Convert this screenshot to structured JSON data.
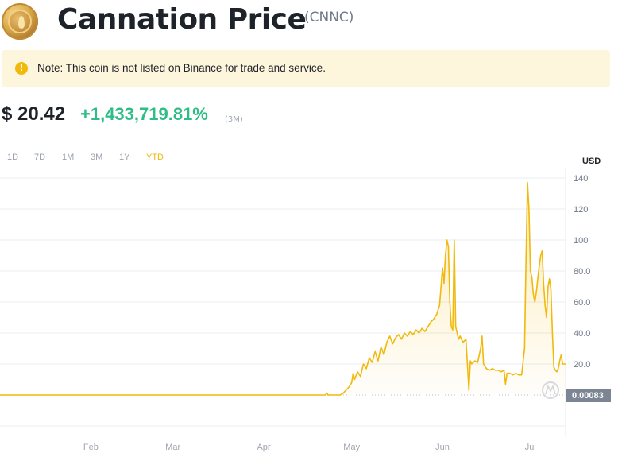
{
  "header": {
    "title": "Cannation Price",
    "symbol": "(CNNC)",
    "logo_icon": "cannation-coin-icon"
  },
  "note": {
    "icon": "exclamation-icon",
    "text": "Note: This coin is not listed on Binance for trade and service."
  },
  "price": {
    "value": "$ 20.42",
    "change": "+1,433,719.81%",
    "period": "(3M)"
  },
  "ranges": [
    {
      "label": "1D",
      "active": false
    },
    {
      "label": "7D",
      "active": false
    },
    {
      "label": "1M",
      "active": false
    },
    {
      "label": "3M",
      "active": false
    },
    {
      "label": "1Y",
      "active": false
    },
    {
      "label": "YTD",
      "active": true
    }
  ],
  "colors": {
    "line": "#f0b90b",
    "up": "#2ebd85",
    "accent": "#f0b90b"
  },
  "chart_data": {
    "type": "area",
    "unit": "USD",
    "ylim": [
      -20,
      145
    ],
    "yticks": [
      "140",
      "120",
      "100",
      "80.0",
      "60.0",
      "40.0",
      "20.0"
    ],
    "ytick_values": [
      140,
      120,
      100,
      80,
      60,
      40,
      20
    ],
    "xlim": [
      0,
      193
    ],
    "xticks": [
      "Feb",
      "Mar",
      "Apr",
      "May",
      "Jun",
      "Jul"
    ],
    "xtick_values": [
      31,
      59,
      90,
      120,
      151,
      181
    ],
    "current_value_label": "0.00083",
    "current_value": 0.00083,
    "grid": true,
    "series": [
      {
        "points": [
          [
            0,
            0.0008
          ],
          [
            111,
            0.0008
          ],
          [
            111.5,
            1.2
          ],
          [
            112,
            0.0008
          ],
          [
            116,
            0.0008
          ],
          [
            117,
            1
          ],
          [
            118,
            3
          ],
          [
            119,
            5
          ],
          [
            120,
            8
          ],
          [
            120.5,
            14
          ],
          [
            121,
            10
          ],
          [
            122,
            15
          ],
          [
            123,
            12
          ],
          [
            124,
            20
          ],
          [
            125,
            17
          ],
          [
            126,
            24
          ],
          [
            127,
            21
          ],
          [
            128,
            28
          ],
          [
            129,
            22
          ],
          [
            130,
            31
          ],
          [
            131,
            26
          ],
          [
            132,
            34
          ],
          [
            133,
            38
          ],
          [
            134,
            33
          ],
          [
            135,
            37
          ],
          [
            136,
            39
          ],
          [
            137,
            36
          ],
          [
            138,
            40
          ],
          [
            139,
            38
          ],
          [
            140,
            41
          ],
          [
            141,
            39
          ],
          [
            142,
            42
          ],
          [
            143,
            40
          ],
          [
            144,
            43
          ],
          [
            145,
            41
          ],
          [
            146,
            44
          ],
          [
            147,
            47
          ],
          [
            148,
            49
          ],
          [
            149,
            52
          ],
          [
            150,
            58
          ],
          [
            150.5,
            70
          ],
          [
            151,
            82
          ],
          [
            151.5,
            72
          ],
          [
            152,
            90
          ],
          [
            152.5,
            100
          ],
          [
            153,
            96
          ],
          [
            153.5,
            60
          ],
          [
            154,
            44
          ],
          [
            154.5,
            42
          ],
          [
            155,
            100
          ],
          [
            155.5,
            44
          ],
          [
            156,
            40
          ],
          [
            156.5,
            36
          ],
          [
            157,
            38
          ],
          [
            158,
            34
          ],
          [
            159,
            36
          ],
          [
            159.5,
            20
          ],
          [
            160,
            3
          ],
          [
            160.5,
            22
          ],
          [
            161,
            20
          ],
          [
            162,
            22
          ],
          [
            163,
            21
          ],
          [
            164,
            30
          ],
          [
            164.5,
            38
          ],
          [
            165,
            20
          ],
          [
            166,
            17
          ],
          [
            167,
            16
          ],
          [
            168,
            17
          ],
          [
            169,
            16
          ],
          [
            170,
            16
          ],
          [
            171,
            15
          ],
          [
            172,
            16
          ],
          [
            172.5,
            7
          ],
          [
            173,
            14
          ],
          [
            174,
            14
          ],
          [
            175,
            13
          ],
          [
            176,
            14
          ],
          [
            177,
            13
          ],
          [
            178,
            13
          ],
          [
            179,
            30
          ],
          [
            179.5,
            88
          ],
          [
            180,
            137
          ],
          [
            180.5,
            120
          ],
          [
            181,
            80
          ],
          [
            181.5,
            76
          ],
          [
            182,
            65
          ],
          [
            182.5,
            60
          ],
          [
            183,
            66
          ],
          [
            183.5,
            75
          ],
          [
            184,
            83
          ],
          [
            184.5,
            90
          ],
          [
            185,
            93
          ],
          [
            185.5,
            72
          ],
          [
            186,
            58
          ],
          [
            186.5,
            50
          ],
          [
            187,
            70
          ],
          [
            187.5,
            75
          ],
          [
            188,
            68
          ],
          [
            188.5,
            40
          ],
          [
            189,
            18
          ],
          [
            189.5,
            16
          ],
          [
            190,
            15
          ],
          [
            190.5,
            17
          ],
          [
            191,
            22
          ],
          [
            191.5,
            26
          ],
          [
            192,
            20
          ],
          [
            193,
            20
          ]
        ]
      }
    ]
  }
}
